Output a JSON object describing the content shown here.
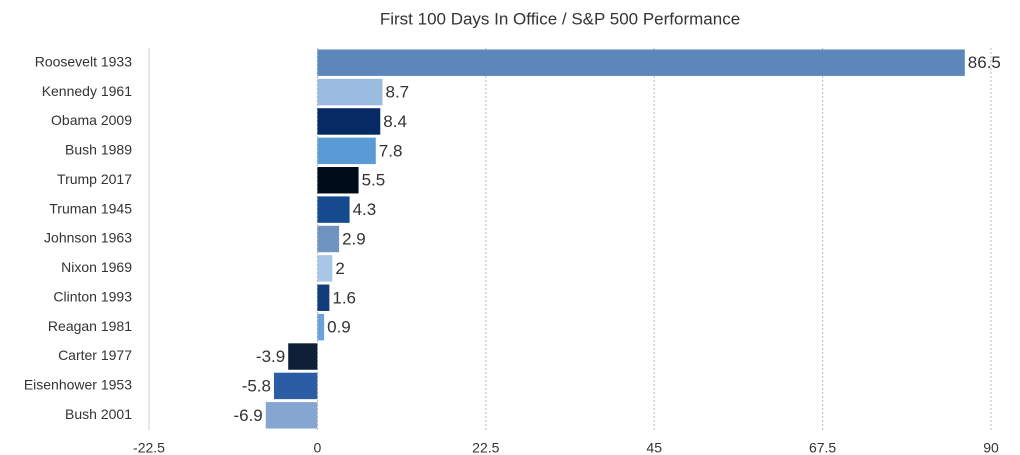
{
  "chart_data": {
    "type": "barh",
    "title": "First 100 Days In Office / S&P 500 Performance",
    "categories": [
      "Roosevelt 1933",
      "Kennedy 1961",
      "Obama 2009",
      "Bush 1989",
      "Trump 2017",
      "Truman 1945",
      "Johnson 1963",
      "Nixon 1969",
      "Clinton 1993",
      "Reagan 1981",
      "Carter 1977",
      "Eisenhower 1953",
      "Bush 2001"
    ],
    "values": [
      86.5,
      8.7,
      8.4,
      7.8,
      5.5,
      4.3,
      2.9,
      2,
      1.6,
      0.9,
      -3.9,
      -5.8,
      -6.9
    ],
    "colors": [
      "#5b87bb",
      "#9abbe0",
      "#062a63",
      "#5b9bd5",
      "#000c1a",
      "#164a8f",
      "#6f94c2",
      "#a8c6e5",
      "#123c7c",
      "#6aa2dc",
      "#0e1f38",
      "#2a5da3",
      "#85a6d1"
    ],
    "xlim": [
      -22.5,
      90
    ],
    "xticks": [
      -22.5,
      0,
      22.5,
      45,
      67.5,
      90
    ],
    "grid": true
  }
}
